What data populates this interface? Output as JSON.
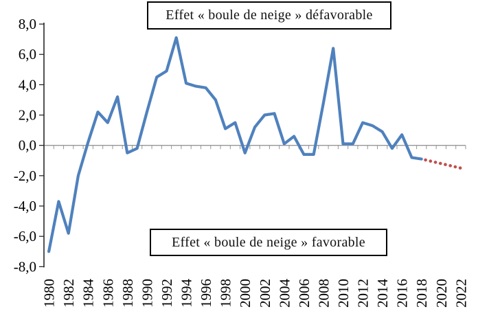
{
  "chart_data": {
    "type": "line",
    "title": "",
    "xlabel": "",
    "ylabel": "",
    "ylim": [
      -8,
      8
    ],
    "ytick_step": 2,
    "grid": false,
    "legend": "none",
    "x_axis_position": "zero",
    "decimal_style": "comma",
    "y_tick_labels": [
      "8,0",
      "6,0",
      "4,0",
      "2,0",
      "0,0",
      "-2,0",
      "-4,0",
      "-6,0",
      "-8,0"
    ],
    "x_tick_labels": [
      "1980",
      "1982",
      "1984",
      "1986",
      "1988",
      "1990",
      "1992",
      "1994",
      "1996",
      "1998",
      "2000",
      "2002",
      "2004",
      "2006",
      "2008",
      "2010",
      "2012",
      "2014",
      "2016",
      "2018",
      "2020",
      "2022"
    ],
    "series": [
      {
        "name": "effet-boule-de-neige-observe",
        "style": "solid",
        "color": "#4F81BD",
        "start_year": 1980,
        "years": [
          1980,
          1981,
          1982,
          1983,
          1984,
          1985,
          1986,
          1987,
          1988,
          1989,
          1990,
          1991,
          1992,
          1993,
          1994,
          1995,
          1996,
          1997,
          1998,
          1999,
          2000,
          2001,
          2002,
          2003,
          2004,
          2005,
          2006,
          2007,
          2008,
          2009,
          2010,
          2011,
          2012,
          2013,
          2014,
          2015,
          2016,
          2017,
          2018
        ],
        "values": [
          -7.0,
          -3.7,
          -5.8,
          -2.0,
          0.2,
          2.2,
          1.5,
          3.2,
          -0.5,
          -0.2,
          2.2,
          4.5,
          4.9,
          7.1,
          4.1,
          3.9,
          3.8,
          3.0,
          1.1,
          1.5,
          -0.5,
          1.2,
          2.0,
          2.1,
          0.1,
          0.6,
          -0.6,
          -0.6,
          2.8,
          6.4,
          0.1,
          0.1,
          1.5,
          1.3,
          0.9,
          -0.2,
          0.7,
          -0.8,
          -0.9
        ]
      },
      {
        "name": "effet-boule-de-neige-projection",
        "style": "dotted",
        "color": "#C0504D",
        "start_year": 2018,
        "years": [
          2018,
          2019,
          2020,
          2021,
          2022
        ],
        "values": [
          -0.9,
          -1.05,
          -1.2,
          -1.35,
          -1.5
        ]
      }
    ],
    "annotations": {
      "top": "Effet « boule de neige » défavorable",
      "bottom": "Effet « boule de neige » favorable"
    },
    "axis_colors": {
      "zero_line": "#969696",
      "y_axis": "#1a1a1a"
    }
  }
}
